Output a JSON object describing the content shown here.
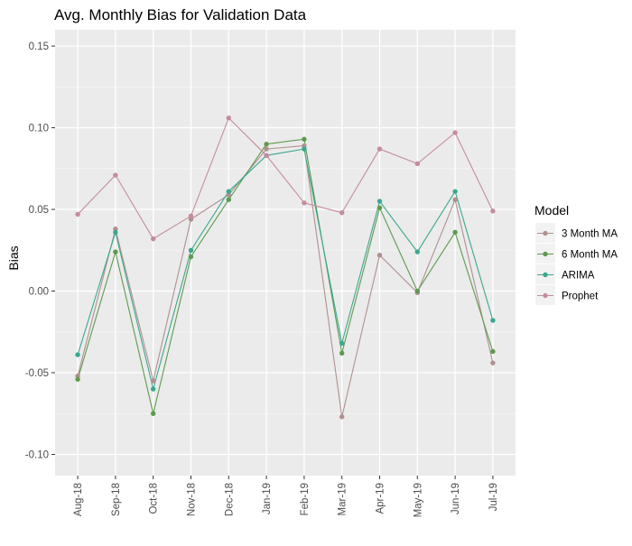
{
  "chart_data": {
    "type": "line",
    "title": "Avg. Monthly Bias for Validation Data",
    "xlabel": "",
    "ylabel": "Bias",
    "categories": [
      "Aug-18",
      "Sep-18",
      "Oct-18",
      "Nov-18",
      "Dec-18",
      "Jan-19",
      "Feb-19",
      "Mar-19",
      "Apr-19",
      "May-19",
      "Jun-19",
      "Jul-19"
    ],
    "ylim": [
      -0.113,
      0.16
    ],
    "yticks": [
      -0.1,
      -0.05,
      0.0,
      0.05,
      0.1,
      0.15
    ],
    "ytick_labels": [
      "-0.10",
      "-0.05",
      "0.00",
      "0.05",
      "0.10",
      "0.15"
    ],
    "grid": true,
    "legend_position": "right",
    "legend_title": "Model",
    "series": [
      {
        "name": "3 Month MA",
        "color": "#b09090",
        "values": [
          -0.052,
          0.038,
          -0.055,
          0.044,
          0.059,
          0.087,
          0.089,
          -0.077,
          0.022,
          -0.001,
          0.056,
          -0.044
        ]
      },
      {
        "name": "6 Month MA",
        "color": "#5e9a4e",
        "values": [
          -0.054,
          0.024,
          -0.075,
          0.021,
          0.056,
          0.09,
          0.093,
          -0.038,
          0.051,
          0.0,
          0.036,
          -0.037
        ]
      },
      {
        "name": "ARIMA",
        "color": "#3aa88e",
        "values": [
          -0.039,
          0.036,
          -0.06,
          0.025,
          0.061,
          0.083,
          0.087,
          -0.032,
          0.055,
          0.024,
          0.061,
          -0.018
        ]
      },
      {
        "name": "Prophet",
        "color": "#c58c9e",
        "values": [
          0.047,
          0.071,
          0.032,
          0.046,
          0.106,
          0.083,
          0.054,
          0.048,
          0.087,
          0.078,
          0.097,
          0.049
        ]
      }
    ]
  }
}
